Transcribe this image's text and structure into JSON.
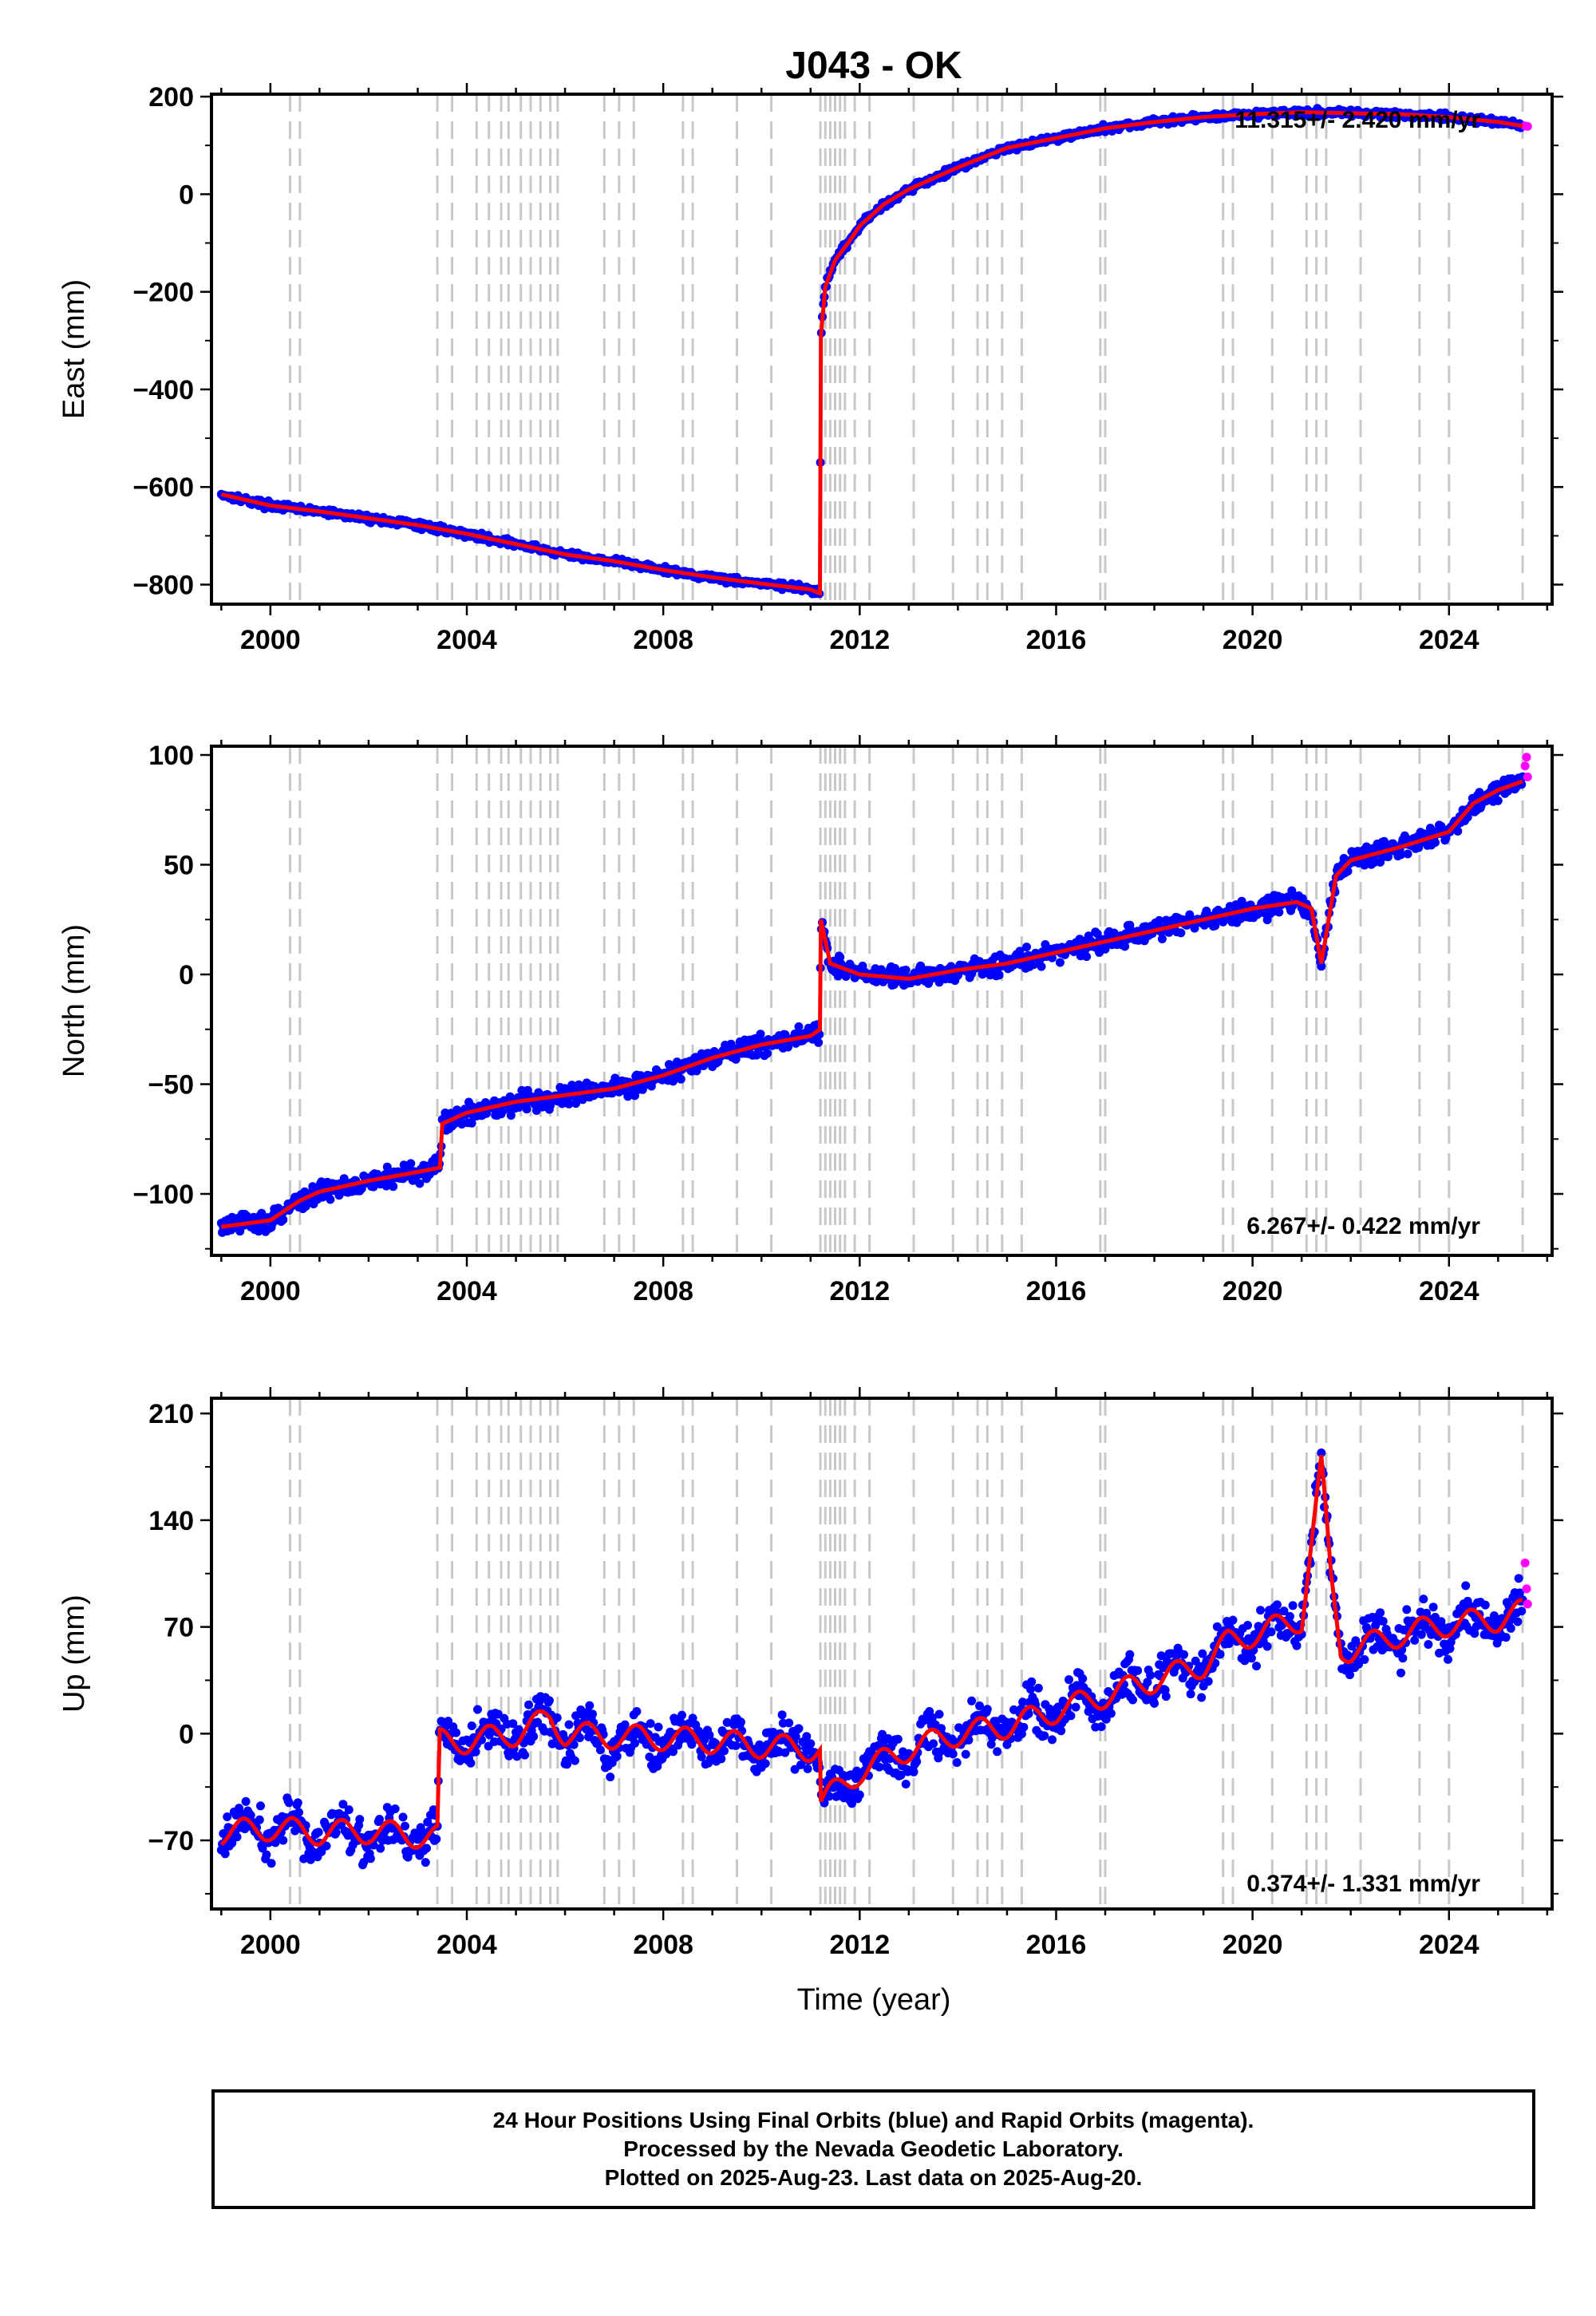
{
  "title": "J043 - OK",
  "xlabel": "Time (year)",
  "colors": {
    "final": "#0000ff",
    "rapid": "#ff00ff",
    "model": "#ff0000",
    "events": "#c8c8c8"
  },
  "caption": [
    "24 Hour Positions Using Final Orbits (blue) and Rapid Orbits (magenta).",
    "Processed by the Nevada Geodetic Laboratory.",
    "Plotted on 2025-Aug-23. Last data on 2025-Aug-20."
  ],
  "chart_data": [
    {
      "type": "scatter",
      "ylabel": "East (mm)",
      "rate_label": "11.315+/- 2.420 mm/yr",
      "xlim": [
        1998.8,
        2026.1
      ],
      "ylim": [
        -840,
        205
      ],
      "xticks": [
        2000,
        2004,
        2008,
        2012,
        2016,
        2020,
        2024
      ],
      "yticks": [
        200,
        0,
        -200,
        -400,
        -600,
        -800
      ],
      "series": [
        {
          "name": "Final Orbits",
          "color": "#0000ff",
          "x": [
            1999.0,
            2000.0,
            2001.0,
            2002.0,
            2003.0,
            2004.0,
            2005.0,
            2006.0,
            2007.0,
            2008.0,
            2009.0,
            2010.0,
            2011.0,
            2011.19,
            2011.21,
            2011.3,
            2011.5,
            2011.8,
            2012.0,
            2012.5,
            2013.0,
            2014.0,
            2015.0,
            2016.0,
            2017.0,
            2018.0,
            2019.0,
            2020.0,
            2021.0,
            2022.0,
            2023.0,
            2024.0,
            2025.0,
            2025.5
          ],
          "y": [
            -615,
            -638,
            -650,
            -664,
            -678,
            -696,
            -717,
            -738,
            -752,
            -770,
            -785,
            -798,
            -810,
            -818,
            -290,
            -190,
            -135,
            -95,
            -65,
            -20,
            10,
            55,
            95,
            115,
            135,
            148,
            158,
            164,
            168,
            166,
            164,
            158,
            148,
            140
          ]
        },
        {
          "name": "Rapid Orbits",
          "color": "#ff00ff",
          "x": [
            2025.55,
            2025.6
          ],
          "y": [
            140,
            139
          ]
        }
      ],
      "events": [
        2000.4,
        2000.6,
        2003.4,
        2003.7,
        2004.2,
        2004.45,
        2004.7,
        2004.85,
        2005.1,
        2005.3,
        2005.5,
        2005.7,
        2005.85,
        2006.8,
        2007.1,
        2007.4,
        2008.4,
        2008.6,
        2009.5,
        2010.2,
        2011.2,
        2011.3,
        2011.4,
        2011.5,
        2011.6,
        2011.7,
        2011.9,
        2012.2,
        2013.1,
        2013.9,
        2014.4,
        2014.6,
        2014.9,
        2015.3,
        2016.9,
        2017.0,
        2019.4,
        2019.6,
        2020.4,
        2021.1,
        2021.3,
        2021.5,
        2022.2,
        2023.4,
        2024.0,
        2025.5
      ]
    },
    {
      "type": "scatter",
      "ylabel": "North (mm)",
      "rate_label": "6.267+/- 0.422 mm/yr",
      "xlim": [
        1998.8,
        2026.1
      ],
      "ylim": [
        -128,
        104
      ],
      "xticks": [
        2000,
        2004,
        2008,
        2012,
        2016,
        2020,
        2024
      ],
      "yticks": [
        100,
        50,
        0,
        -50,
        -100
      ],
      "series": [
        {
          "name": "Final Orbits",
          "color": "#0000ff",
          "x": [
            1999.0,
            2000.0,
            2000.6,
            2001.0,
            2002.0,
            2003.0,
            2003.45,
            2003.5,
            2004.0,
            2005.0,
            2006.0,
            2007.0,
            2008.0,
            2009.0,
            2010.0,
            2011.0,
            2011.19,
            2011.21,
            2011.4,
            2012.0,
            2013.0,
            2014.0,
            2015.0,
            2016.0,
            2017.0,
            2018.0,
            2019.0,
            2020.0,
            2020.9,
            2021.2,
            2021.4,
            2021.7,
            2022.0,
            2023.0,
            2024.0,
            2024.5,
            2025.0,
            2025.5
          ],
          "y": [
            -115,
            -112,
            -103,
            -99,
            -94,
            -90,
            -88,
            -68,
            -63,
            -58,
            -55,
            -52,
            -46,
            -38,
            -32,
            -28,
            -25,
            25,
            5,
            0,
            -2,
            2,
            5,
            10,
            15,
            20,
            25,
            30,
            33,
            30,
            5,
            45,
            52,
            58,
            65,
            78,
            84,
            88
          ]
        },
        {
          "name": "Rapid Orbits",
          "color": "#ff00ff",
          "x": [
            2025.55,
            2025.58,
            2025.6
          ],
          "y": [
            95,
            99,
            90
          ]
        }
      ],
      "events": [
        2000.4,
        2000.6,
        2003.4,
        2003.7,
        2004.2,
        2004.45,
        2004.7,
        2004.85,
        2005.1,
        2005.3,
        2005.5,
        2005.7,
        2005.85,
        2006.8,
        2007.1,
        2007.4,
        2008.4,
        2008.6,
        2009.5,
        2010.2,
        2011.2,
        2011.3,
        2011.4,
        2011.5,
        2011.6,
        2011.7,
        2011.9,
        2012.2,
        2013.1,
        2013.9,
        2014.4,
        2014.6,
        2014.9,
        2015.3,
        2016.9,
        2017.0,
        2019.4,
        2019.6,
        2020.4,
        2021.1,
        2021.3,
        2021.5,
        2022.2,
        2023.4,
        2024.0,
        2025.5
      ]
    },
    {
      "type": "scatter",
      "ylabel": "Up (mm)",
      "rate_label": "0.374+/- 1.331 mm/yr",
      "xlim": [
        1998.8,
        2026.1
      ],
      "ylim": [
        -115,
        220
      ],
      "xticks": [
        2000,
        2004,
        2008,
        2012,
        2016,
        2020,
        2024
      ],
      "yticks": [
        210,
        140,
        70,
        0,
        -70
      ],
      "series": [
        {
          "name": "Final Orbits",
          "color": "#0000ff",
          "x": [
            1999.0,
            2000.0,
            2001.0,
            2002.0,
            2003.0,
            2003.4,
            2003.45,
            2004.0,
            2005.0,
            2005.7,
            2006.0,
            2007.0,
            2008.0,
            2009.0,
            2010.0,
            2011.0,
            2011.19,
            2011.21,
            2012.0,
            2013.0,
            2014.0,
            2015.0,
            2016.0,
            2017.0,
            2018.0,
            2019.0,
            2019.5,
            2020.0,
            2021.0,
            2021.4,
            2021.6,
            2021.8,
            2022.0,
            2023.0,
            2024.0,
            2025.0,
            2025.5
          ],
          "y": [
            -65,
            -62,
            -65,
            -64,
            -67,
            -68,
            -5,
            -5,
            0,
            10,
            0,
            -2,
            -3,
            -5,
            -8,
            -10,
            -10,
            -45,
            -25,
            -10,
            0,
            5,
            15,
            25,
            35,
            45,
            60,
            65,
            75,
            175,
            100,
            55,
            55,
            65,
            72,
            75,
            80
          ]
        },
        {
          "name": "Rapid Orbits",
          "color": "#ff00ff",
          "x": [
            2025.55,
            2025.58,
            2025.6
          ],
          "y": [
            112,
            95,
            85
          ]
        }
      ],
      "events": [
        2000.4,
        2000.6,
        2003.4,
        2003.7,
        2004.2,
        2004.45,
        2004.7,
        2004.85,
        2005.1,
        2005.3,
        2005.5,
        2005.7,
        2005.85,
        2006.8,
        2007.1,
        2007.4,
        2008.4,
        2008.6,
        2009.5,
        2010.2,
        2011.2,
        2011.3,
        2011.4,
        2011.5,
        2011.6,
        2011.7,
        2011.9,
        2012.2,
        2013.1,
        2013.9,
        2014.4,
        2014.6,
        2014.9,
        2015.3,
        2016.9,
        2017.0,
        2019.4,
        2019.6,
        2020.4,
        2021.1,
        2021.3,
        2021.5,
        2022.2,
        2023.4,
        2024.0,
        2025.5
      ]
    }
  ]
}
